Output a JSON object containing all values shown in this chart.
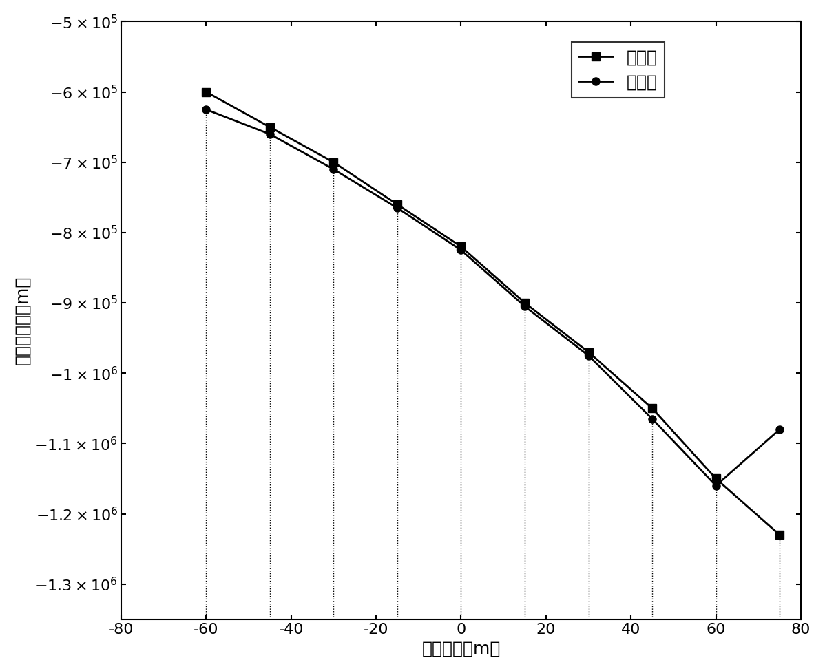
{
  "x": [
    -60,
    -45,
    -30,
    -15,
    0,
    15,
    30,
    45,
    60,
    75
  ],
  "y_full": [
    -600000,
    -650000,
    -700000,
    -760000,
    -820000,
    -900000,
    -970000,
    -1050000,
    -1150000,
    -1230000
  ],
  "y_trunc": [
    -625000,
    -660000,
    -710000,
    -765000,
    -825000,
    -905000,
    -975000,
    -1065000,
    -1160000,
    -1080000
  ],
  "xlabel": "水平位移（m）",
  "ylabel": "系泊线张力（m）",
  "legend_full": "全水深",
  "legend_trunc": "截断后",
  "xlim": [
    -80,
    80
  ],
  "ylim": [
    -1350000.0,
    -500000.0
  ],
  "yticks": [
    -1300000.0,
    -1200000.0,
    -1100000.0,
    -1000000.0,
    -900000.0,
    -800000.0,
    -700000.0,
    -600000.0,
    -500000.0
  ],
  "xticks": [
    -80,
    -60,
    -40,
    -20,
    0,
    20,
    40,
    60,
    80
  ],
  "line_color": "#000000",
  "marker_square": "s",
  "marker_circle": "o",
  "marker_size": 8,
  "line_width": 2.0,
  "dotted_x": [
    -60,
    -45,
    -30,
    -15,
    0,
    15,
    30,
    45,
    60,
    75
  ]
}
